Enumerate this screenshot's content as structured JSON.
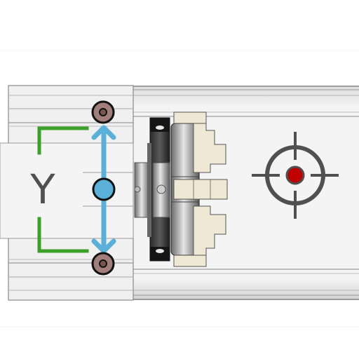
{
  "diagram": {
    "axis_label": "Y",
    "colors": {
      "background": "#ffffff",
      "rail": "#efefef",
      "rail_edge": "#7a7a7a",
      "bracket": "#3aa028",
      "arrow": "#5ab0d8",
      "pivot": "#5ab0d8",
      "pin": "#a27e7a",
      "target_ring": "#505050",
      "target_dot": "#c00000",
      "chuck_dark": "#1a1a1a",
      "jaw": "#efe8d4"
    },
    "icons": [
      "upper-pin-icon",
      "lower-pin-icon",
      "pivot-icon",
      "crosshair-target-icon",
      "double-arrow-icon"
    ]
  }
}
